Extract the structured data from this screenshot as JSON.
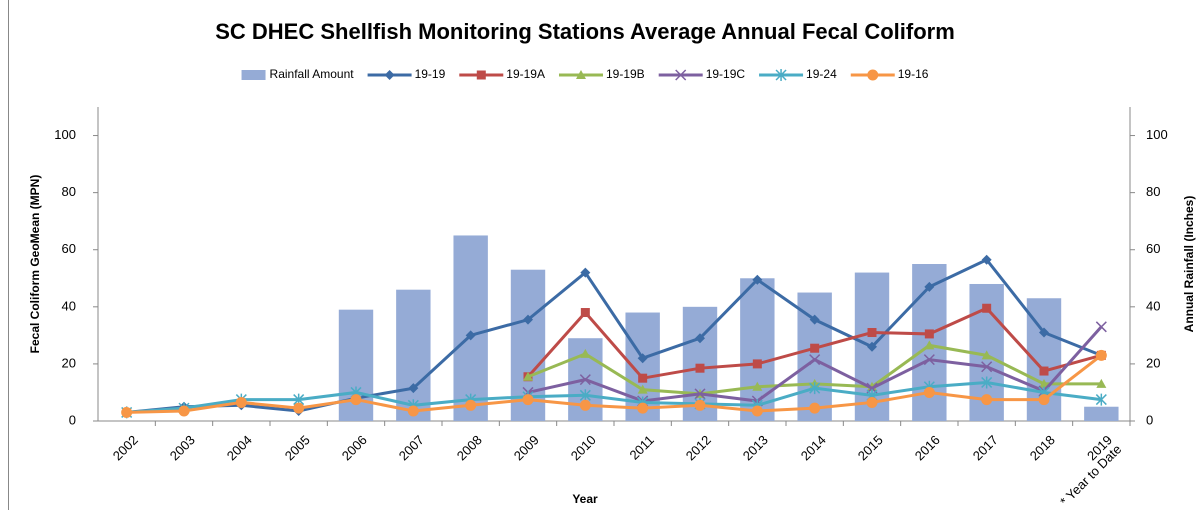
{
  "chart_data": {
    "type": "line",
    "title": "SC DHEC Shellfish Monitoring Stations Average Annual Fecal Coliform",
    "x_label": "Year",
    "y_label": "Fecal Coliform GeoMean (MPN)",
    "y2_label": "Annual Rainfall (Inches)",
    "categories": [
      "2002",
      "2003",
      "2004",
      "2005",
      "2006",
      "2007",
      "2008",
      "2009",
      "2010",
      "2011",
      "2012",
      "2013",
      "2014",
      "2015",
      "2016",
      "2017",
      "2018",
      "2019\n* Year to Date"
    ],
    "ylim": [
      0,
      110
    ],
    "yticks": [
      0,
      20,
      40,
      60,
      80,
      100
    ],
    "y2lim": [
      0,
      110
    ],
    "y2ticks": [
      0,
      20,
      40,
      60,
      80,
      100
    ],
    "legend": "top",
    "series": [
      {
        "name": "Rainfall Amount",
        "type": "bar",
        "axis": "y2",
        "color": "#95abd6",
        "values": [
          null,
          null,
          null,
          null,
          39,
          46,
          65,
          53,
          29,
          38,
          40,
          50,
          45,
          52,
          55,
          48,
          43,
          5
        ]
      },
      {
        "name": "19-19",
        "marker": "diamond",
        "color": "#3c6ba5",
        "values": [
          3,
          5,
          5.5,
          3.5,
          8,
          11.5,
          30,
          35.5,
          52,
          22,
          29,
          49.5,
          35.5,
          26,
          47,
          56.5,
          31,
          23
        ]
      },
      {
        "name": "19-19A",
        "marker": "square",
        "color": "#be4b48",
        "values": [
          null,
          null,
          null,
          null,
          null,
          null,
          null,
          15.5,
          38,
          15,
          18.5,
          20,
          25.5,
          31,
          30.5,
          39.5,
          17.5,
          23
        ]
      },
      {
        "name": "19-19B",
        "marker": "triangle",
        "color": "#98b954",
        "values": [
          null,
          null,
          null,
          null,
          null,
          null,
          null,
          15.5,
          23.5,
          11,
          9.5,
          12,
          13,
          12,
          26.5,
          23,
          13,
          13
        ]
      },
      {
        "name": "19-19C",
        "marker": "x",
        "color": "#7d60a0",
        "values": [
          null,
          null,
          null,
          null,
          null,
          null,
          null,
          10,
          14.5,
          7,
          9.5,
          7,
          21.5,
          11.5,
          21.5,
          19,
          10.5,
          33
        ]
      },
      {
        "name": "19-24",
        "marker": "star",
        "color": "#4aacc5",
        "values": [
          3,
          4.5,
          7.5,
          7.5,
          10,
          5.5,
          7.5,
          8.5,
          9,
          6.5,
          6,
          5.5,
          11.5,
          9,
          12,
          13.5,
          10,
          7.5
        ]
      },
      {
        "name": "19-16",
        "marker": "circle",
        "color": "#f79646",
        "values": [
          3,
          3.5,
          6.5,
          4.5,
          7.5,
          3.5,
          5.5,
          7.5,
          5.5,
          4.5,
          5.5,
          3.5,
          4.5,
          6.5,
          10,
          7.5,
          7.5,
          23
        ]
      }
    ]
  }
}
